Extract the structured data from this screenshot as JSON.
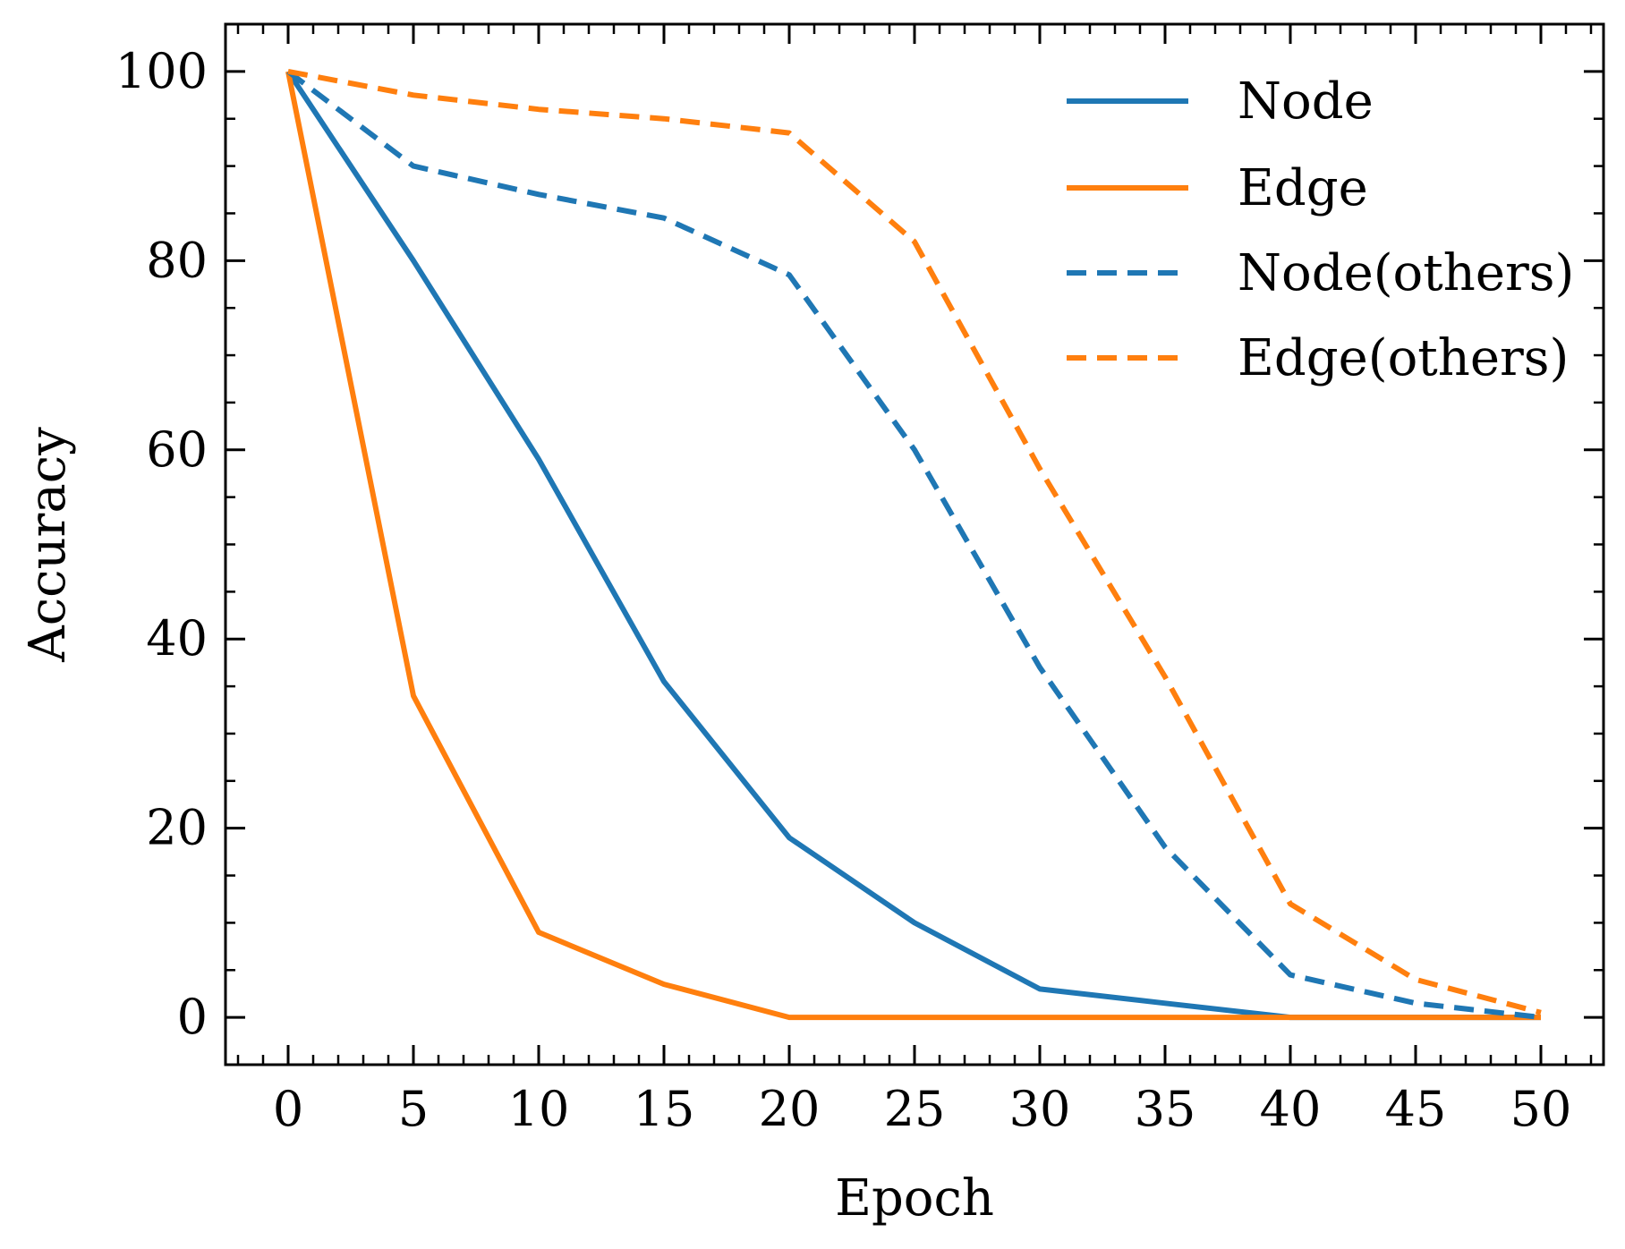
{
  "chart_data": {
    "type": "line",
    "title": "",
    "xlabel": "Epoch",
    "ylabel": "Accuracy",
    "xlim": [
      -2.5,
      52.5
    ],
    "ylim": [
      -5,
      105
    ],
    "xticks": [
      0,
      5,
      10,
      15,
      20,
      25,
      30,
      35,
      40,
      45,
      50
    ],
    "yticks": [
      0,
      20,
      40,
      60,
      80,
      100
    ],
    "x_minor_step": 1,
    "y_minor_step": 5,
    "grid": false,
    "legend_position": "top-right",
    "x": [
      0,
      5,
      10,
      15,
      20,
      25,
      30,
      35,
      40,
      45,
      50
    ],
    "series": [
      {
        "name": "Node",
        "color": "#1f77b4",
        "style": "solid",
        "values": [
          100,
          80,
          59,
          35.5,
          19,
          10,
          3,
          1.5,
          0,
          0,
          0
        ]
      },
      {
        "name": "Edge",
        "color": "#ff7f0e",
        "style": "solid",
        "values": [
          100,
          34,
          9,
          3.5,
          0,
          0,
          0,
          0,
          0,
          0,
          0
        ]
      },
      {
        "name": "Node(others)",
        "color": "#1f77b4",
        "style": "dashed",
        "values": [
          100,
          90,
          87,
          84.5,
          78.5,
          60,
          37,
          18,
          4.5,
          1.5,
          0
        ]
      },
      {
        "name": "Edge(others)",
        "color": "#ff7f0e",
        "style": "dashed",
        "values": [
          100,
          97.5,
          96,
          95,
          93.5,
          82,
          58,
          36,
          12,
          4,
          0.5
        ]
      }
    ]
  }
}
